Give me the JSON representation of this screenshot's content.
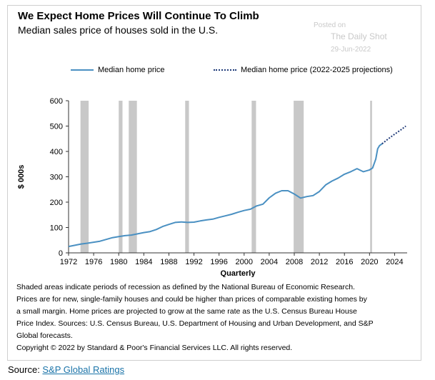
{
  "header": {
    "title": "We Expect Home Prices Will Continue To Climb",
    "subtitle": "Median sales price of houses sold in the U.S."
  },
  "watermark": {
    "line1": "Posted on",
    "line2": "The Daily Shot",
    "line3": "29-Jun-2022"
  },
  "notes": {
    "line1": "Shaded areas indicate periods of recession as defined by the National Bureau of Economic Research.",
    "line2": "Prices are for new, single-family houses and could be higher than prices of comparable existing homes by",
    "line3": "a small margin. Home prices are projected to grow at the same rate as the U.S. Census Bureau House",
    "line4": "Price Index. Sources: U.S. Census Bureau, U.S. Department of Housing and Urban Development, and S&P",
    "line5": "Global forecasts.",
    "line6": "Copyright © 2022 by Standard & Poor's Financial Services LLC. All rights reserved."
  },
  "footer": {
    "source_prefix": "Source: ",
    "source_link": "S&P Global Ratings"
  },
  "chart_data": {
    "type": "line",
    "xlabel": "Quarterly",
    "ylabel": "$ 000s",
    "xlim": [
      1972,
      2026
    ],
    "ylim": [
      0,
      600
    ],
    "x_ticks": [
      1972,
      1976,
      1980,
      1984,
      1988,
      1992,
      1996,
      2000,
      2004,
      2008,
      2012,
      2016,
      2020,
      2024
    ],
    "y_ticks": [
      0,
      100,
      200,
      300,
      400,
      500,
      600
    ],
    "grid": false,
    "legend_position": "top",
    "recessions": [
      [
        1973.9,
        1975.2
      ],
      [
        1980.0,
        1980.6
      ],
      [
        1981.6,
        1982.9
      ],
      [
        1990.6,
        1991.2
      ],
      [
        2001.2,
        2001.9
      ],
      [
        2007.9,
        2009.5
      ],
      [
        2020.1,
        2020.4
      ]
    ],
    "series": [
      {
        "name": "Median home price",
        "style": "solid",
        "color": "#4a90c2",
        "points": [
          [
            1972,
            25
          ],
          [
            1973,
            30
          ],
          [
            1974,
            35
          ],
          [
            1975,
            38
          ],
          [
            1976,
            42
          ],
          [
            1977,
            46
          ],
          [
            1978,
            53
          ],
          [
            1979,
            60
          ],
          [
            1980,
            64
          ],
          [
            1981,
            68
          ],
          [
            1982,
            70
          ],
          [
            1983,
            75
          ],
          [
            1984,
            80
          ],
          [
            1985,
            84
          ],
          [
            1986,
            92
          ],
          [
            1987,
            104
          ],
          [
            1988,
            112
          ],
          [
            1989,
            120
          ],
          [
            1990,
            122
          ],
          [
            1991,
            120
          ],
          [
            1992,
            121
          ],
          [
            1993,
            126
          ],
          [
            1994,
            130
          ],
          [
            1995,
            133
          ],
          [
            1996,
            140
          ],
          [
            1997,
            146
          ],
          [
            1998,
            152
          ],
          [
            1999,
            160
          ],
          [
            2000,
            167
          ],
          [
            2001,
            172
          ],
          [
            2002,
            185
          ],
          [
            2003,
            192
          ],
          [
            2004,
            217
          ],
          [
            2005,
            235
          ],
          [
            2006,
            245
          ],
          [
            2007,
            245
          ],
          [
            2008,
            232
          ],
          [
            2009,
            216
          ],
          [
            2010,
            222
          ],
          [
            2011,
            226
          ],
          [
            2012,
            242
          ],
          [
            2013,
            268
          ],
          [
            2014,
            283
          ],
          [
            2015,
            295
          ],
          [
            2016,
            310
          ],
          [
            2017,
            320
          ],
          [
            2018,
            332
          ],
          [
            2019,
            320
          ],
          [
            2020,
            327
          ],
          [
            2020.5,
            335
          ],
          [
            2021,
            370
          ],
          [
            2021.3,
            410
          ],
          [
            2021.6,
            423
          ],
          [
            2022,
            430
          ]
        ]
      },
      {
        "name": "Median home price (2022-2025 projections)",
        "style": "dotted",
        "color": "#1f3a78",
        "points": [
          [
            2022,
            430
          ],
          [
            2023,
            450
          ],
          [
            2024,
            468
          ],
          [
            2025,
            485
          ],
          [
            2025.8,
            500
          ]
        ]
      }
    ]
  }
}
